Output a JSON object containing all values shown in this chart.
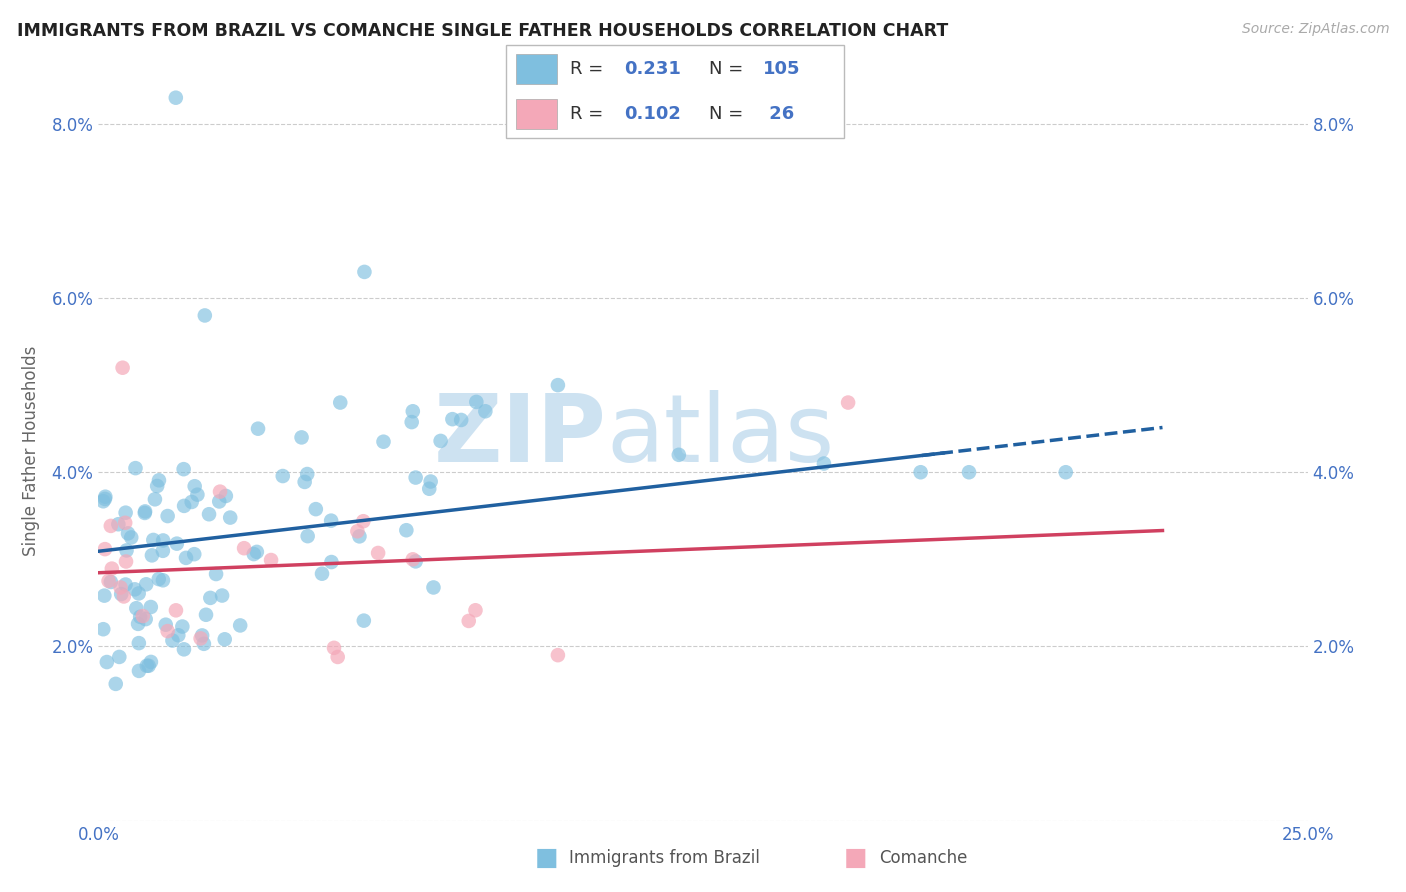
{
  "title": "IMMIGRANTS FROM BRAZIL VS COMANCHE SINGLE FATHER HOUSEHOLDS CORRELATION CHART",
  "source": "Source: ZipAtlas.com",
  "ylabel": "Single Father Households",
  "xlim": [
    0.0,
    0.25
  ],
  "ylim": [
    0.0,
    0.085
  ],
  "blue_R": "0.231",
  "blue_N": "105",
  "pink_R": "0.102",
  "pink_N": "26",
  "blue_color": "#7fbfdf",
  "pink_color": "#f4a8b8",
  "blue_line_color": "#2060a0",
  "pink_line_color": "#d04060",
  "watermark_zip": "ZIP",
  "watermark_atlas": "atlas",
  "legend_blue_R": "0.231",
  "legend_blue_N": "105",
  "legend_pink_R": "0.102",
  "legend_pink_N": " 26"
}
